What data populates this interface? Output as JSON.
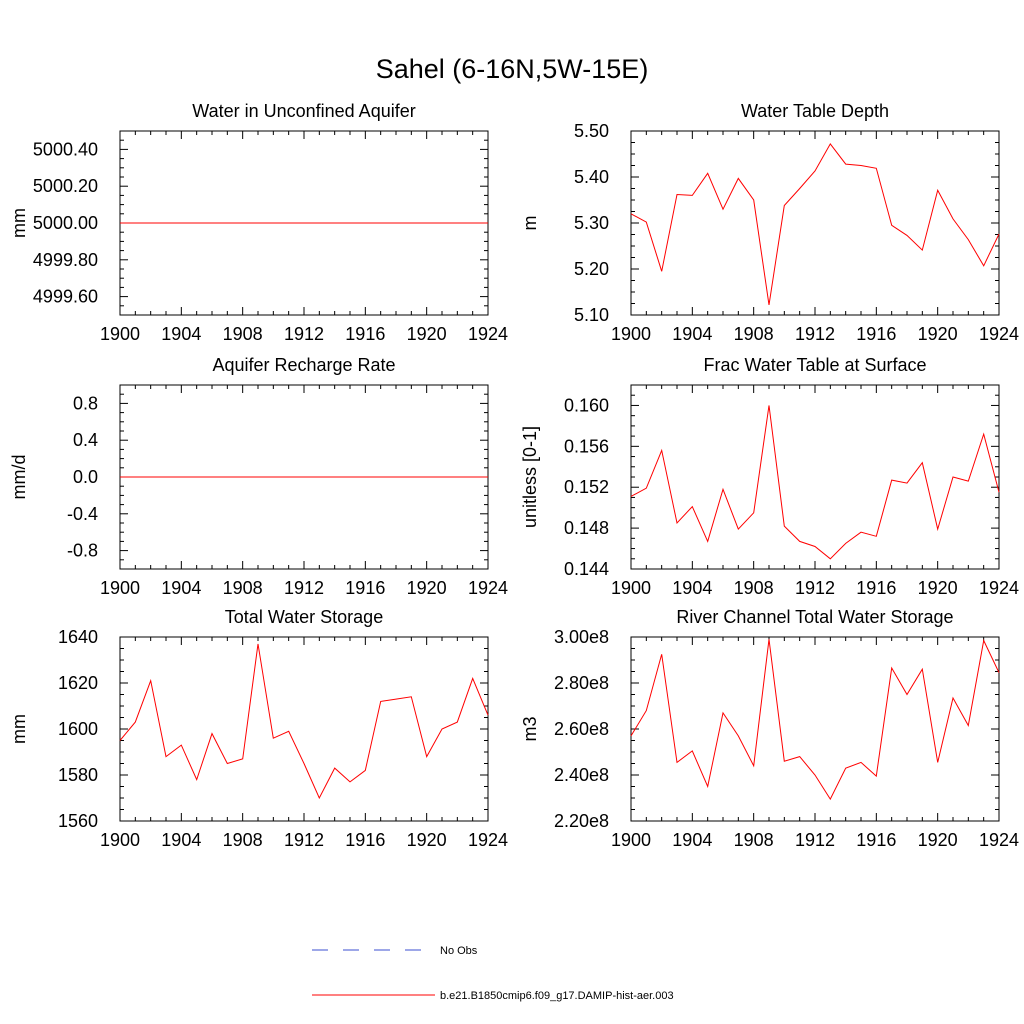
{
  "title": "Sahel (6-16N,5W-15E)",
  "colors": {
    "model": "#ff0000",
    "obs": "#3b4fd1",
    "axis": "#000000"
  },
  "legend": {
    "entries": [
      {
        "label": "No Obs",
        "style": "dashed",
        "color": "#3b4fd1"
      },
      {
        "label": "b.e21.B1850cmip6.f09_g17.DAMIP-hist-aer.003",
        "style": "solid",
        "color": "#ff0000"
      }
    ]
  },
  "chart_data": [
    {
      "type": "line",
      "title": "Water in Unconfined Aquifer",
      "ylabel": "mm",
      "xlim": [
        1900,
        1924
      ],
      "ylim": [
        4999.5,
        5000.5
      ],
      "xticks": [
        1900,
        1904,
        1908,
        1912,
        1916,
        1920,
        1924
      ],
      "yticks": [
        4999.6,
        4999.8,
        5000.0,
        5000.2,
        5000.4
      ],
      "yticklabels": [
        "4999.60",
        "4999.80",
        "5000.00",
        "5000.20",
        "5000.40"
      ],
      "x": [
        1900,
        1901,
        1902,
        1903,
        1904,
        1905,
        1906,
        1907,
        1908,
        1909,
        1910,
        1911,
        1912,
        1913,
        1914,
        1915,
        1916,
        1917,
        1918,
        1919,
        1920,
        1921,
        1922,
        1923,
        1924
      ],
      "series": [
        {
          "values": [
            5000,
            5000,
            5000,
            5000,
            5000,
            5000,
            5000,
            5000,
            5000,
            5000,
            5000,
            5000,
            5000,
            5000,
            5000,
            5000,
            5000,
            5000,
            5000,
            5000,
            5000,
            5000,
            5000,
            5000,
            5000
          ]
        }
      ]
    },
    {
      "type": "line",
      "title": "Water Table Depth",
      "ylabel": "m",
      "xlim": [
        1900,
        1924
      ],
      "ylim": [
        5.1,
        5.5
      ],
      "xticks": [
        1900,
        1904,
        1908,
        1912,
        1916,
        1920,
        1924
      ],
      "yticks": [
        5.1,
        5.2,
        5.3,
        5.4,
        5.5
      ],
      "yticklabels": [
        "5.10",
        "5.20",
        "5.30",
        "5.40",
        "5.50"
      ],
      "x": [
        1900,
        1901,
        1902,
        1903,
        1904,
        1905,
        1906,
        1907,
        1908,
        1909,
        1910,
        1911,
        1912,
        1913,
        1914,
        1915,
        1916,
        1917,
        1918,
        1919,
        1920,
        1921,
        1922,
        1923,
        1924
      ],
      "series": [
        {
          "values": [
            5.32,
            5.302,
            5.195,
            5.362,
            5.36,
            5.408,
            5.33,
            5.397,
            5.35,
            5.122,
            5.338,
            5.375,
            5.413,
            5.472,
            5.428,
            5.425,
            5.419,
            5.295,
            5.273,
            5.241,
            5.371,
            5.309,
            5.264,
            5.207,
            5.276
          ]
        }
      ]
    },
    {
      "type": "line",
      "title": "Aquifer Recharge Rate",
      "ylabel": "mm/d",
      "xlim": [
        1900,
        1924
      ],
      "ylim": [
        -1.0,
        1.0
      ],
      "xticks": [
        1900,
        1904,
        1908,
        1912,
        1916,
        1920,
        1924
      ],
      "yticks": [
        -0.8,
        -0.4,
        0.0,
        0.4,
        0.8
      ],
      "yticklabels": [
        "-0.8",
        "-0.4",
        "0.0",
        "0.4",
        "0.8"
      ],
      "x": [
        1900,
        1901,
        1902,
        1903,
        1904,
        1905,
        1906,
        1907,
        1908,
        1909,
        1910,
        1911,
        1912,
        1913,
        1914,
        1915,
        1916,
        1917,
        1918,
        1919,
        1920,
        1921,
        1922,
        1923,
        1924
      ],
      "series": [
        {
          "values": [
            0,
            0,
            0,
            0,
            0,
            0,
            0,
            0,
            0,
            0,
            0,
            0,
            0,
            0,
            0,
            0,
            0,
            0,
            0,
            0,
            0,
            0,
            0,
            0,
            0
          ]
        }
      ]
    },
    {
      "type": "line",
      "title": "Frac Water Table at Surface",
      "ylabel": "unitless [0-1]",
      "xlim": [
        1900,
        1924
      ],
      "ylim": [
        0.144,
        0.162
      ],
      "xticks": [
        1900,
        1904,
        1908,
        1912,
        1916,
        1920,
        1924
      ],
      "yticks": [
        0.144,
        0.148,
        0.152,
        0.156,
        0.16
      ],
      "yticklabels": [
        "0.144",
        "0.148",
        "0.152",
        "0.156",
        "0.160"
      ],
      "x": [
        1900,
        1901,
        1902,
        1903,
        1904,
        1905,
        1906,
        1907,
        1908,
        1909,
        1910,
        1911,
        1912,
        1913,
        1914,
        1915,
        1916,
        1917,
        1918,
        1919,
        1920,
        1921,
        1922,
        1923,
        1924
      ],
      "series": [
        {
          "values": [
            0.1511,
            0.1519,
            0.1556,
            0.1485,
            0.1501,
            0.1467,
            0.1518,
            0.1479,
            0.1495,
            0.16,
            0.1482,
            0.1467,
            0.1462,
            0.145,
            0.1465,
            0.1476,
            0.1472,
            0.1527,
            0.1524,
            0.1544,
            0.1479,
            0.153,
            0.1526,
            0.1572,
            0.1515
          ]
        }
      ]
    },
    {
      "type": "line",
      "title": "Total Water Storage",
      "ylabel": "mm",
      "xlim": [
        1900,
        1924
      ],
      "ylim": [
        1560,
        1640
      ],
      "xticks": [
        1900,
        1904,
        1908,
        1912,
        1916,
        1920,
        1924
      ],
      "yticks": [
        1560,
        1580,
        1600,
        1620,
        1640
      ],
      "yticklabels": [
        "1560",
        "1580",
        "1600",
        "1620",
        "1640"
      ],
      "x": [
        1900,
        1901,
        1902,
        1903,
        1904,
        1905,
        1906,
        1907,
        1908,
        1909,
        1910,
        1911,
        1912,
        1913,
        1914,
        1915,
        1916,
        1917,
        1918,
        1919,
        1920,
        1921,
        1922,
        1923,
        1924
      ],
      "series": [
        {
          "values": [
            1595,
            1603,
            1621,
            1588,
            1593,
            1578,
            1598,
            1585,
            1587,
            1637,
            1596,
            1599,
            1585,
            1570,
            1583,
            1577,
            1582,
            1612,
            1613,
            1614,
            1588,
            1600,
            1603,
            1622,
            1606
          ]
        }
      ]
    },
    {
      "type": "line",
      "title": "River Channel Total Water Storage",
      "ylabel": "m3",
      "xlim": [
        1900,
        1924
      ],
      "ylim": [
        220000000,
        300000000
      ],
      "xticks": [
        1900,
        1904,
        1908,
        1912,
        1916,
        1920,
        1924
      ],
      "yticks": [
        220000000,
        240000000,
        260000000,
        280000000,
        300000000
      ],
      "yticklabels": [
        "2.20e8",
        "2.40e8",
        "2.60e8",
        "2.80e8",
        "3.00e8"
      ],
      "x": [
        1900,
        1901,
        1902,
        1903,
        1904,
        1905,
        1906,
        1907,
        1908,
        1909,
        1910,
        1911,
        1912,
        1913,
        1914,
        1915,
        1916,
        1917,
        1918,
        1919,
        1920,
        1921,
        1922,
        1923,
        1924
      ],
      "series": [
        {
          "values": [
            257000000,
            268000000,
            292500000,
            245500000,
            250500000,
            235000000,
            267000000,
            257000000,
            244000000,
            299000000,
            246000000,
            248000000,
            240000000,
            229500000,
            243000000,
            245500000,
            239500000,
            286500000,
            275000000,
            286000000,
            245500000,
            273500000,
            261500000,
            298500000,
            284500000
          ]
        }
      ]
    }
  ]
}
